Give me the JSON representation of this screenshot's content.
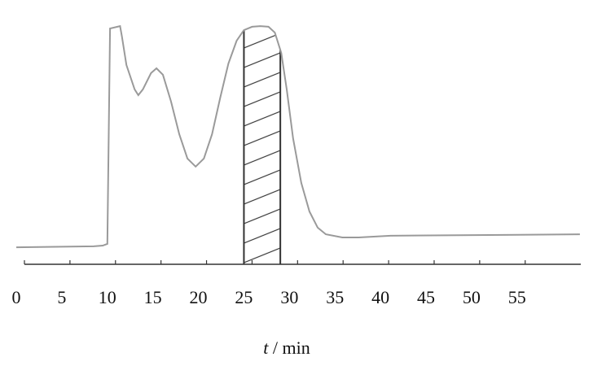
{
  "chart_data": {
    "type": "line",
    "x_label_symbol": "t",
    "x_label_unit": "/ min",
    "x": [
      0,
      8.5,
      9.5,
      10.0,
      10.3,
      11.4,
      11.6,
      12.1,
      13.0,
      13.4,
      13.9,
      14.8,
      15.4,
      16.1,
      17.0,
      17.9,
      18.8,
      19.7,
      20.6,
      21.5,
      22.4,
      23.3,
      24.2,
      25.0,
      25.9,
      26.8,
      27.7,
      28.4,
      29.1,
      29.7,
      30.4,
      31.3,
      32.2,
      33.1,
      34.0,
      35.8,
      37.6,
      41.1,
      51.9,
      61.9
    ],
    "values": [
      7.1,
      7.5,
      7.8,
      8.5,
      98.3,
      99.3,
      94.9,
      83.1,
      72.9,
      70.5,
      72.9,
      79.7,
      81.7,
      79.0,
      67.8,
      54.2,
      44.1,
      40.7,
      44.1,
      54.2,
      69.5,
      83.7,
      93.2,
      97.6,
      99.0,
      99.3,
      99.0,
      96.6,
      88.1,
      72.9,
      52.5,
      33.9,
      22.0,
      15.3,
      12.5,
      11.2,
      11.2,
      11.9,
      12.2,
      12.5
    ],
    "color": "#9a9a9a",
    "shaded_region": [
      25,
      29
    ],
    "shade_color": "#333333",
    "xlim": [
      0,
      62
    ],
    "ylim": [
      0,
      100
    ],
    "xticks": [
      0,
      5,
      10,
      15,
      20,
      25,
      30,
      35,
      40,
      45,
      50,
      55
    ]
  }
}
